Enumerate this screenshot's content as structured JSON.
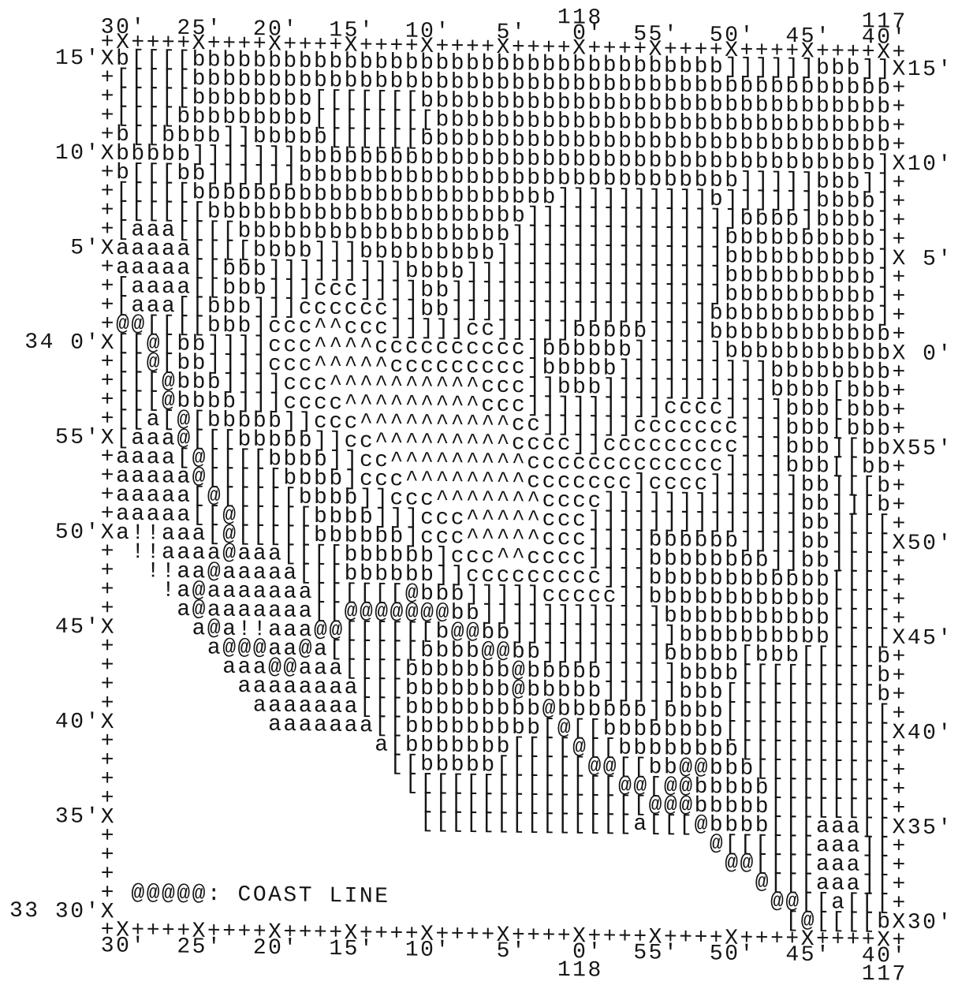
{
  "top_degree_labels": "                                    118                 117",
  "top_minute_labels": "      30'  25'  20'  15'  10'   5'   0'  55'  50'  45'  40'",
  "top_axis": "      +X++++X++++X++++X++++X++++X++++X++++X++++X++++X++++X+",
  "rows": [
    "   15'Xb[[[[bbbbbbbbbbbbbbbbbbbbbbbbbbbbbbbbbbb]]]]]]bbb]]X15'",
    "      +[[[[[bbbbbbbbbbbbbbbbbbbbbbbbbbbbbbbbbbbbbbbbbbbbbb+",
    "      +[[[[[bbbbbbbb[[[[[[[bbbbbbbbbbbbbbbbbbbbbbbbbbbbbbb+",
    "      +[[[[bbbbbbbbb[[[[[[[[bbbbbbbbbbbbbbbbbbbbbbbbbbbbbb+",
    "      +b[[bbbb]]bbbbb[[[[[[bbbbbbbbbbbbbbbbbbbbbbbbbbbbbbb+",
    "   10'Xbbbbb]]]]]]]bbbbbbbbbbbbbbbbbbbbbbbbbbbbbbbbbbbbbb]X10'",
    "      +b[[[bb]]]]]]bbbbbbbbbbbbbbbbbbbbbbbbbbbbb]]]]]bbb]]+",
    "      +[[[[[bbbbbbbbbbbbbbbbbbbbbbbb]]]]]]]]]]b]]]]]]bbbb]+",
    "      +[[[[[[bbbbbbbbbbbbbbbbbbbbb]]]]]]]]]]]]]]bbbb]bbbb]+",
    "      +[aaa[[[[bbbbbbbbbbbbbbbbbb]]]]]]]]]]]]]]bbbbbbbbbb]+",
    "    5'Xaaaaa[[[[bbbb]]]bbbbbbbbb]]]]]]]]]]]]]]]bbbbbbbbbb]X 5'",
    "      +aaaaa[[bbb]]]]]]]]]bbbb]]]]]]]]]]]]]]]]]bbbbbbbbbb]+",
    "      +[aaaa[[bbb]]]ccc]]]]bb]]]]]]]]]]]]]]]]]]bbbbbbbbbb]+",
    "      +[aaa[[bbb]]]cccccc]]bb]]]]]]]]]]]]]]]]]bbbbbbbbbbb]+",
    "      +@@[[[[bbb]ccc^^ccc]]]]]cc]]]]]bbbbb]]]]bbbbbbbbbbbb+",
    " 34 0'X[[@[bb]]]]ccc^^^^cccccccccc]bbbbbb]]]]]]bbbbbbbbbbbX 0'",
    "      +[[@[bb]]]]ccc^^^^^ccccccccc]bbbbb]]]]]]]]]]bbbbbbbb+",
    "      +[[[@bbb]]]]ccc^^^^^^^^^^ccc]]bbb]]]]]]]]]]]bbbb[bbb+",
    "      +[[[@bbbb]]]cccc^^^^^^^^^ccc]]]]]]]]]cccc]]]]bbb[bbb+",
    "      +[[a[@[bbbbb]]ccc^^^^^^^^^^cc]]]]]]ccccccc]]]bbb[bbb+",
    "   55'X[aaa@[[[bbbbb]]cc^^^^^^^^^cccc]]ccccccccc]]]bbb][bbX55'",
    "      +aaaa[@[[[[bbbb]]cc^^^^^^^^^ccccccccccccc]]]]bbb[[bb+",
    "      +aaaaa@[[[[[bbbb]ccc^^^^^^^^ccccccc]cccc]]]]]]bb][[b+",
    "      +aaaaa[@[[[[[bbbb]]ccc^^^^^^^cccc]]]]]]]]]]]]]bb]][b+",
    "      +aaaaa[[@[[[[[bbbb]]]ccc^^^^^ccc]]]]]]]]]]]]]]bb][[[+",
    "   50'Xa!!aaa[@[[[[[bbbbbb]ccc^^^^^ccc]]]]bbbbbb]]]]bb][[[X50'",
    "      + !!aaaa@aaa[[[[bbbbbb]ccc^^cccc]]]]bbbbbbbb]]bb][[[+",
    "      +  !!aa@aaaaa[[[bbbbbb]]ccccccccc]]]bbbbbbbbbbbb[[[[+",
    "      +   !a@aaaaaaa[[[[[[@bbb]]]]]ccccc]]bbbbbbbbbbbb[[[[+",
    "      +    a@aaaaaaa[[@@@@@@@bb]]]]]]]]]]]]bbbbbbbbbbb[[[[+",
    "   45'X     a@a!!aaa@@[[[[[[b@@bb]]]]]]]]]]]bbbbbbbbbb[[[[X45'",
    "      +      a@@@aa@a[[[[[[bbbb@@bb]]]]]]]]bbbbb[bbb[[[[[b+",
    "      +       aaa@@aaa[[[[bbbbbbb@bbbbb]]]]]bbbb[[[[[[[[[b+",
    "      +        aaaaaaaa[[[bbbbbbb@bbbbb]]]]]bbb[[[[[[[[[[b+",
    "      +         aaaaaaa[[[bbbbbbbbb@bbbbbb]bbbb[[[[[[[[[[[+",
    "   40'X          aaaaaaa[[bbbbbbbbb[@[[bbbbbbbb[[[[[[[[[[[X40'",
    "      +                 a[bbbbbbb[[[[@[[bbbbbbbb[[[[[[[[[[+",
    "      +                  [[bbbbb[[[[[[@@[[bb@@bbb[[[[[[[[[+",
    "      +                   [[[[[[[[[[[[[[@@[@@bbbbb[[[[[[[[+",
    "      +                    [[[[[[[[[[[[[[[@@@bbbbb[[[[[[[[+",
    "   35'X                    [[[[[[[[[[[[[[a[[[@bbbb[[[aaa[[X35'",
    "      +                                       @[[[[[[aaa][+",
    "      +                                        @@[[[[aaa][+",
    "      +                                          @[[[aaa][+",
    "      +                                           @@[[a[[[+",
    "33 30'X                                            [@[[[[bX30'"
  ],
  "legend": "@@@@@: COAST LINE",
  "bottom_axis": "      +X++++X++++X++++X++++X++++X++++X++++X++++X++++X++++X+",
  "bottom_minute_labels": "      30'  25'  20'  15'  10'   5'   0'  55'  50'  45'  40'",
  "bottom_degree_labels": "                                    118                 117"
}
